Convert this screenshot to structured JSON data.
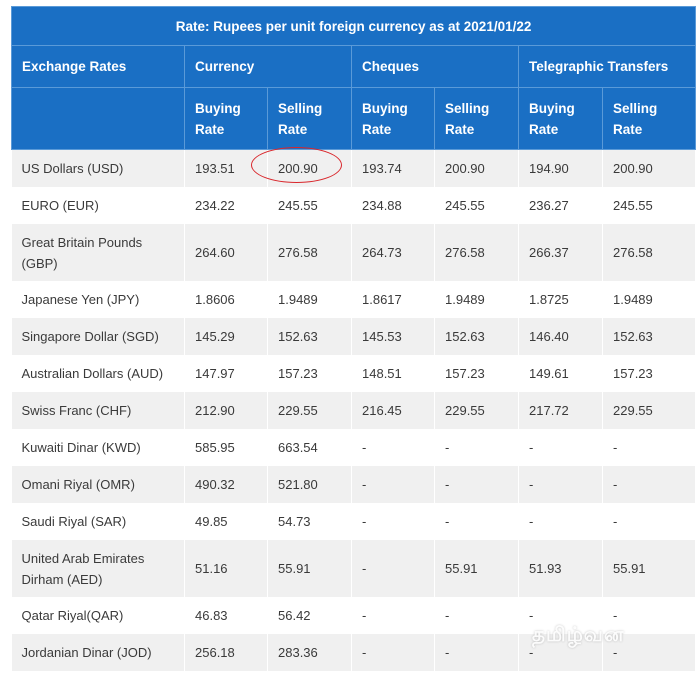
{
  "table": {
    "title": "Rate: Rupees per unit foreign currency as at 2021/01/22",
    "headers": {
      "exchange_rates": "Exchange Rates",
      "currency": "Currency",
      "cheques": "Cheques",
      "telegraphic_transfers": "Telegraphic Transfers",
      "buying_rate": "Buying Rate",
      "selling_rate": "Selling Rate"
    },
    "rows": [
      {
        "name": "US Dollars (USD)",
        "cur_buy": "193.51",
        "cur_sell": "200.90",
        "chq_buy": "193.74",
        "chq_sell": "200.90",
        "tt_buy": "194.90",
        "tt_sell": "200.90"
      },
      {
        "name": "EURO (EUR)",
        "cur_buy": "234.22",
        "cur_sell": "245.55",
        "chq_buy": "234.88",
        "chq_sell": "245.55",
        "tt_buy": "236.27",
        "tt_sell": "245.55"
      },
      {
        "name": "Great Britain Pounds (GBP)",
        "cur_buy": "264.60",
        "cur_sell": "276.58",
        "chq_buy": "264.73",
        "chq_sell": "276.58",
        "tt_buy": "266.37",
        "tt_sell": "276.58"
      },
      {
        "name": "Japanese Yen (JPY)",
        "cur_buy": "1.8606",
        "cur_sell": "1.9489",
        "chq_buy": "1.8617",
        "chq_sell": "1.9489",
        "tt_buy": "1.8725",
        "tt_sell": "1.9489"
      },
      {
        "name": "Singapore Dollar (SGD)",
        "cur_buy": "145.29",
        "cur_sell": "152.63",
        "chq_buy": "145.53",
        "chq_sell": "152.63",
        "tt_buy": "146.40",
        "tt_sell": "152.63"
      },
      {
        "name": "Australian Dollars (AUD)",
        "cur_buy": "147.97",
        "cur_sell": "157.23",
        "chq_buy": "148.51",
        "chq_sell": "157.23",
        "tt_buy": "149.61",
        "tt_sell": "157.23"
      },
      {
        "name": "Swiss Franc (CHF)",
        "cur_buy": "212.90",
        "cur_sell": "229.55",
        "chq_buy": "216.45",
        "chq_sell": "229.55",
        "tt_buy": "217.72",
        "tt_sell": "229.55"
      },
      {
        "name": "Kuwaiti Dinar (KWD)",
        "cur_buy": "585.95",
        "cur_sell": "663.54",
        "chq_buy": "-",
        "chq_sell": "-",
        "tt_buy": "-",
        "tt_sell": "-"
      },
      {
        "name": "Omani Riyal (OMR)",
        "cur_buy": "490.32",
        "cur_sell": "521.80",
        "chq_buy": "-",
        "chq_sell": "-",
        "tt_buy": "-",
        "tt_sell": "-"
      },
      {
        "name": "Saudi Riyal (SAR)",
        "cur_buy": "49.85",
        "cur_sell": "54.73",
        "chq_buy": "-",
        "chq_sell": "-",
        "tt_buy": "-",
        "tt_sell": "-"
      },
      {
        "name": "United Arab Emirates Dirham (AED)",
        "cur_buy": "51.16",
        "cur_sell": "55.91",
        "chq_buy": "-",
        "chq_sell": "55.91",
        "tt_buy": "51.93",
        "tt_sell": "55.91"
      },
      {
        "name": "Qatar Riyal(QAR)",
        "cur_buy": "46.83",
        "cur_sell": "56.42",
        "chq_buy": "-",
        "chq_sell": "-",
        "tt_buy": "-",
        "tt_sell": "-"
      },
      {
        "name": "Jordanian Dinar (JOD)",
        "cur_buy": "256.18",
        "cur_sell": "283.36",
        "chq_buy": "-",
        "chq_sell": "-",
        "tt_buy": "-",
        "tt_sell": "-"
      }
    ]
  },
  "watermark": "தமிழ்வன",
  "colors": {
    "header_bg": "#1a6fc4",
    "row_alt_bg": "#f0f0f0",
    "highlight_circle": "#d9262b"
  }
}
